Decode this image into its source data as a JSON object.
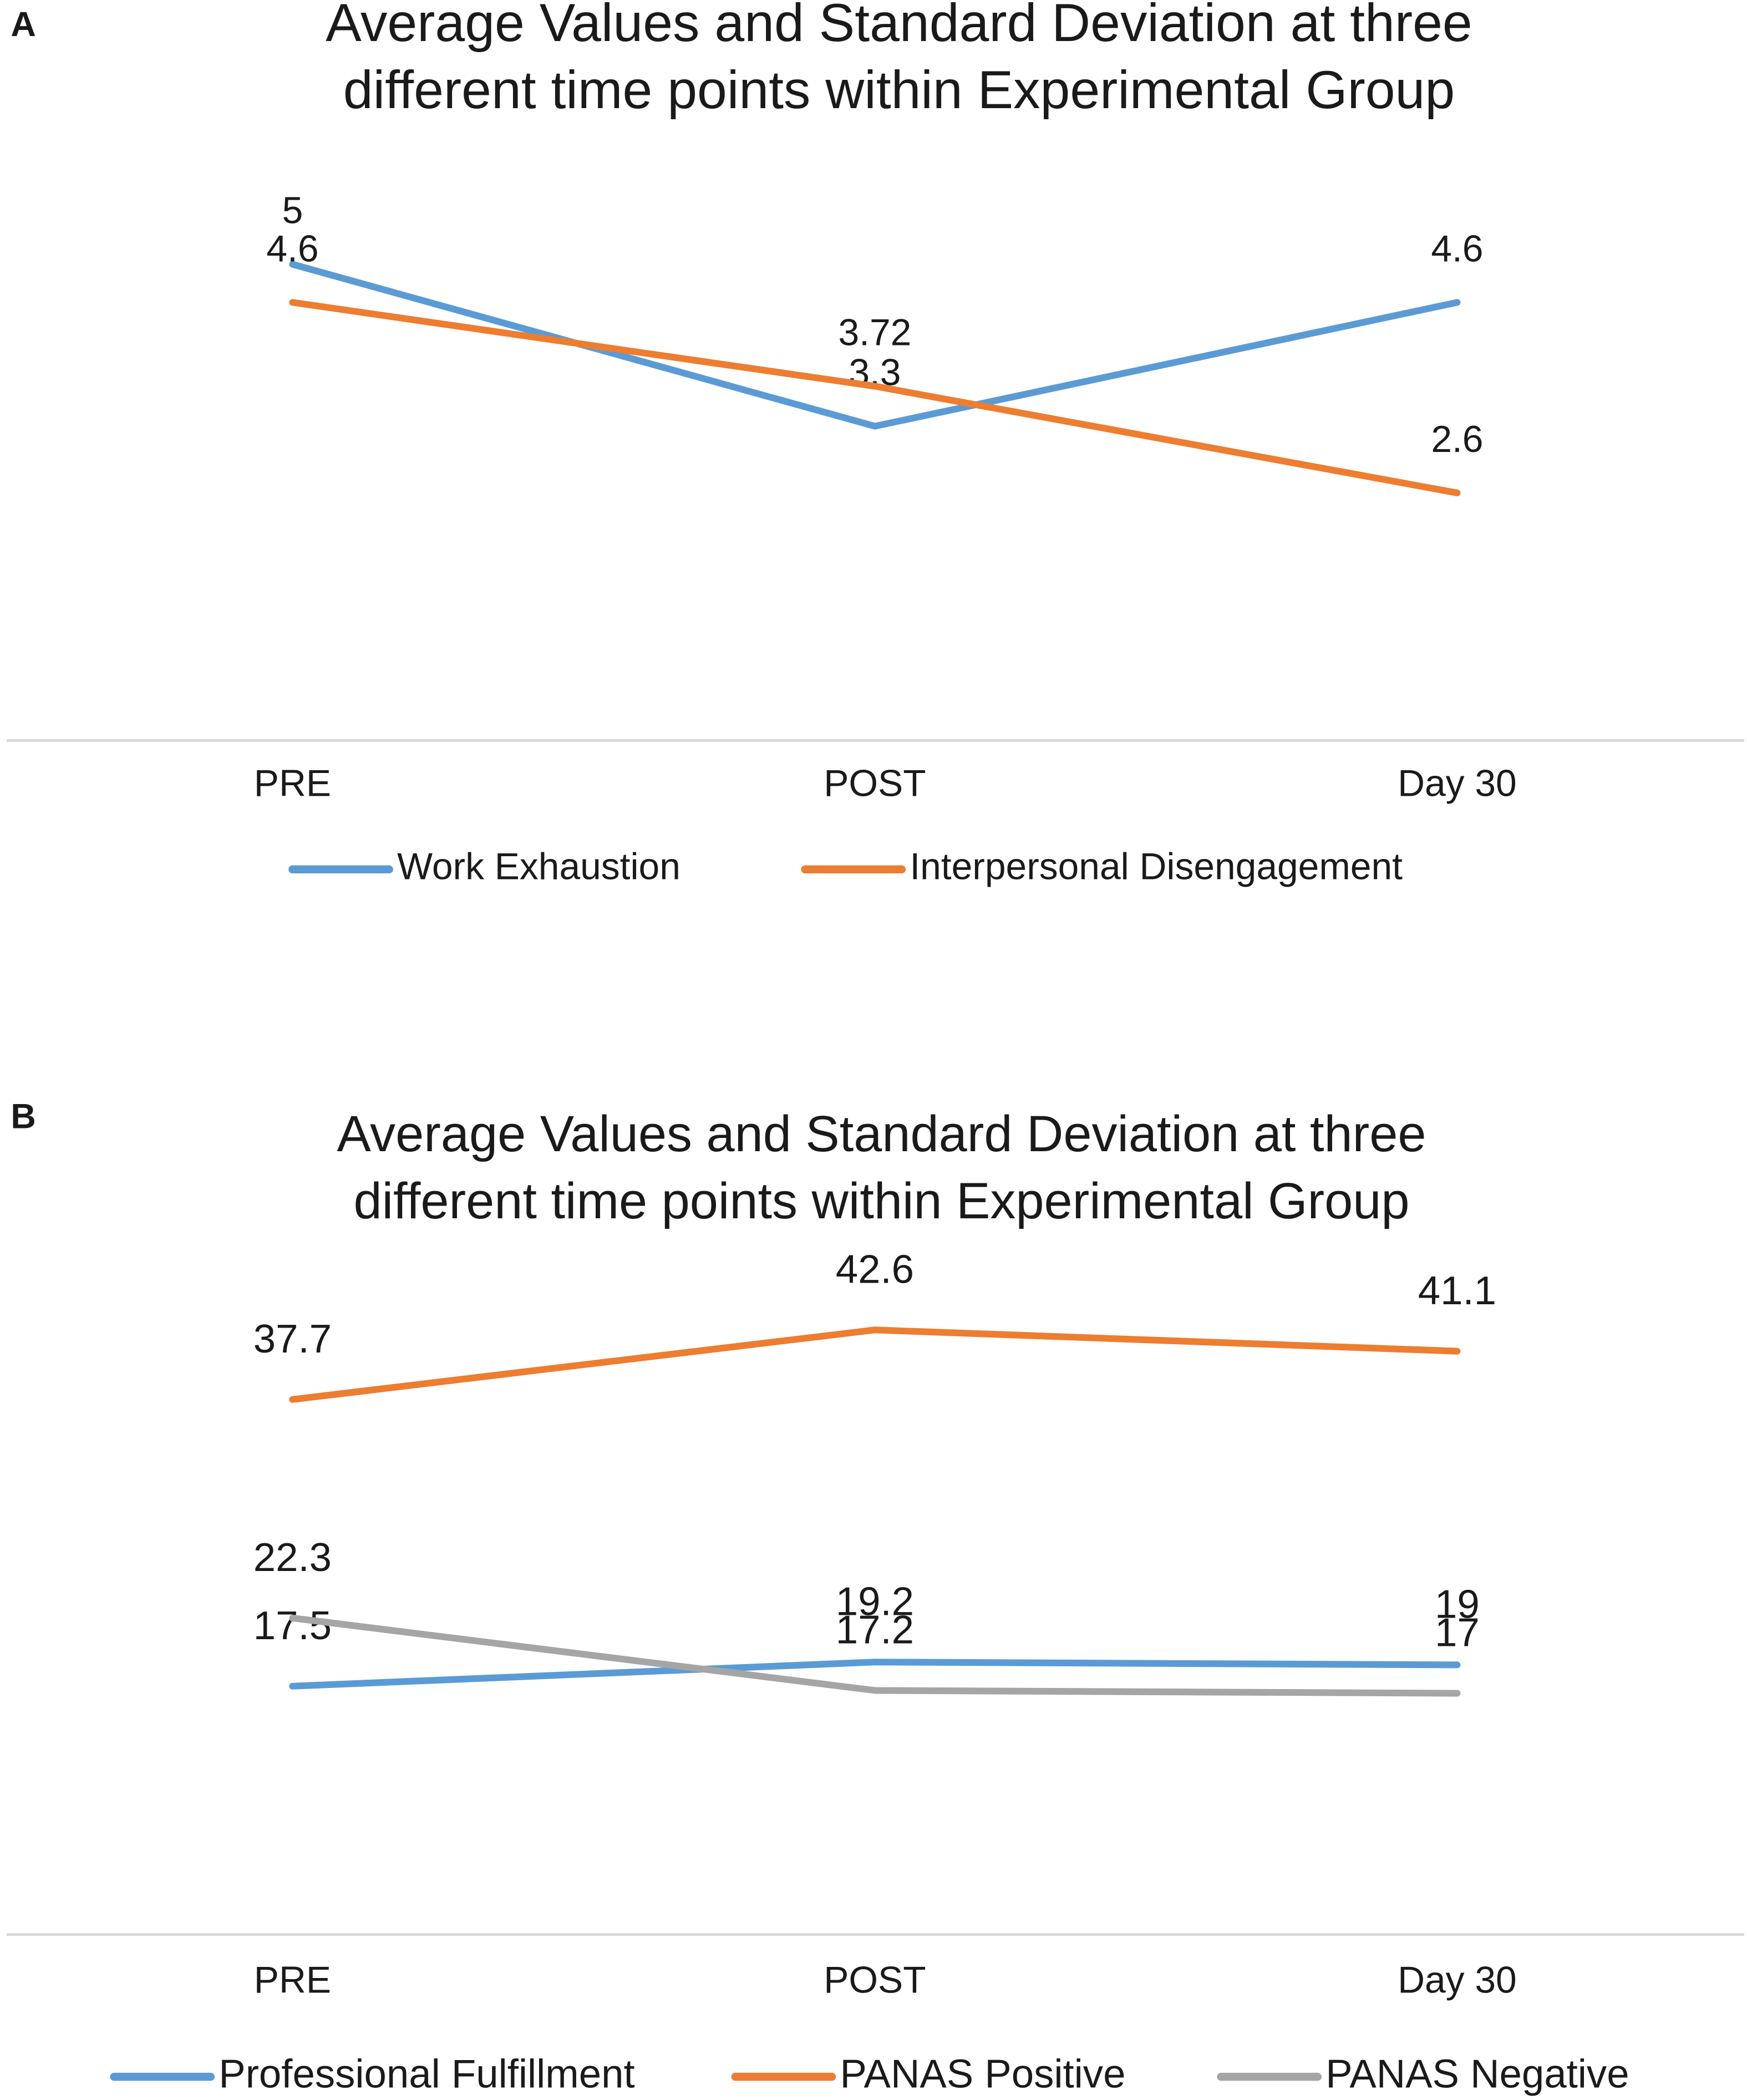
{
  "chart_data": [
    {
      "type": "line",
      "panel_label": "A",
      "title": [
        "Average  Values and Standard Deviation at three",
        "different time points within Experimental  Group"
      ],
      "categories": [
        "PRE",
        "POST",
        "Day 30"
      ],
      "series": [
        {
          "name": "Work Exhaustion",
          "color": "#5b9bd5",
          "values": [
            5,
            3.3,
            4.6
          ]
        },
        {
          "name": "Interpersonal Disengagement",
          "color": "#ed7d31",
          "values": [
            4.6,
            3.72,
            2.6
          ]
        }
      ],
      "ylim": [
        0,
        6
      ],
      "grid": false,
      "legend": "bottom"
    },
    {
      "type": "line",
      "panel_label": "B",
      "title": [
        "Average Values and Standard Deviation at three",
        "different time points within Experimental Group"
      ],
      "categories": [
        "PRE",
        "POST",
        "Day 30"
      ],
      "series": [
        {
          "name": "Professional Fulfillment",
          "color": "#5b9bd5",
          "values": [
            17.5,
            19.2,
            19
          ]
        },
        {
          "name": "PANAS Positive",
          "color": "#ed7d31",
          "values": [
            37.7,
            42.6,
            41.1
          ]
        },
        {
          "name": "PANAS Negative",
          "color": "#a5a5a5",
          "values": [
            22.3,
            17.2,
            17
          ]
        }
      ],
      "ylim": [
        0,
        50
      ],
      "grid": false,
      "legend": "bottom"
    }
  ]
}
